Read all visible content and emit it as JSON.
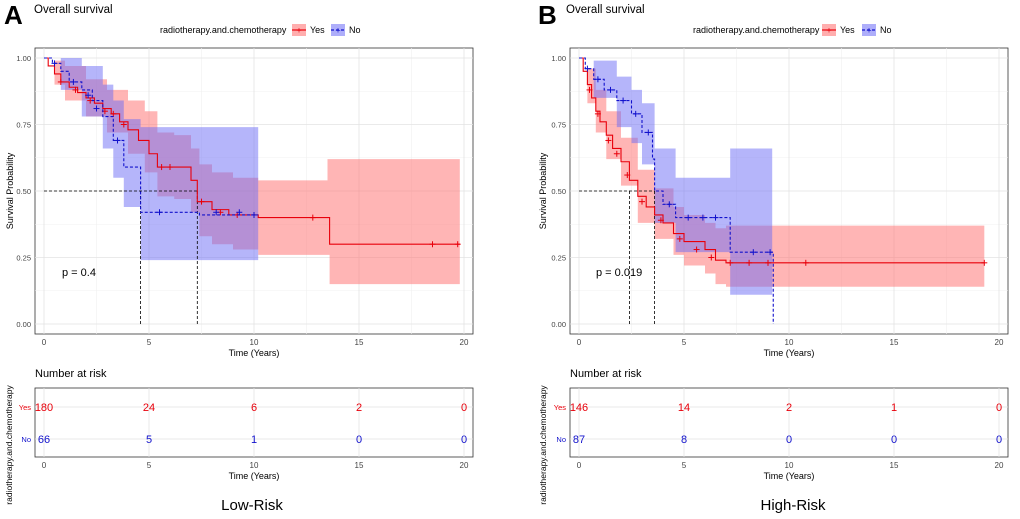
{
  "chart_data": [
    {
      "panel_label": "A",
      "type": "line",
      "subtype": "kaplan-meier",
      "title": "Overall survival",
      "legend_title": "radiotherapy.and.chemotherapy",
      "legend_entries": [
        "Yes",
        "No"
      ],
      "xlabel": "Time (Years)",
      "ylabel": "Survival Probability",
      "xlim": [
        0,
        20
      ],
      "ylim": [
        0,
        1
      ],
      "x_ticks": [
        "0",
        "5",
        "10",
        "15",
        "20"
      ],
      "y_ticks": [
        "0.00",
        "0.25",
        "0.50",
        "0.75",
        "1.00"
      ],
      "pvalue_text": "p = 0.4",
      "median_survival": {
        "Yes": 7.3,
        "No": 4.6
      },
      "series": [
        {
          "name": "Yes",
          "color": "#e8000b",
          "band_color": "#ff6b6b",
          "steps": [
            [
              0,
              1.0
            ],
            [
              0.2,
              0.97
            ],
            [
              0.5,
              0.94
            ],
            [
              0.8,
              0.91
            ],
            [
              1.2,
              0.89
            ],
            [
              1.6,
              0.87
            ],
            [
              2.0,
              0.85
            ],
            [
              2.4,
              0.83
            ],
            [
              2.8,
              0.81
            ],
            [
              3.2,
              0.79
            ],
            [
              3.6,
              0.76
            ],
            [
              4.0,
              0.73
            ],
            [
              4.5,
              0.69
            ],
            [
              5.0,
              0.64
            ],
            [
              5.4,
              0.59
            ],
            [
              6.2,
              0.59
            ],
            [
              7.0,
              0.54
            ],
            [
              7.3,
              0.46
            ],
            [
              8.0,
              0.43
            ],
            [
              8.8,
              0.41
            ],
            [
              10.2,
              0.4
            ],
            [
              13.5,
              0.4
            ],
            [
              13.6,
              0.3
            ],
            [
              19.8,
              0.3
            ]
          ],
          "upper": [
            [
              0,
              1.0
            ],
            [
              0.5,
              0.99
            ],
            [
              1.0,
              0.97
            ],
            [
              2.0,
              0.92
            ],
            [
              3.0,
              0.88
            ],
            [
              4.0,
              0.84
            ],
            [
              4.8,
              0.8
            ],
            [
              5.4,
              0.72
            ],
            [
              6.2,
              0.71
            ],
            [
              7.0,
              0.66
            ],
            [
              7.4,
              0.6
            ],
            [
              8.0,
              0.57
            ],
            [
              9.0,
              0.55
            ],
            [
              10.2,
              0.54
            ],
            [
              13.5,
              0.62
            ],
            [
              19.8,
              0.62
            ]
          ],
          "lower": [
            [
              0,
              1.0
            ],
            [
              0.5,
              0.9
            ],
            [
              1.0,
              0.84
            ],
            [
              2.0,
              0.78
            ],
            [
              3.0,
              0.72
            ],
            [
              4.0,
              0.64
            ],
            [
              4.8,
              0.57
            ],
            [
              5.4,
              0.48
            ],
            [
              6.2,
              0.47
            ],
            [
              7.0,
              0.42
            ],
            [
              7.4,
              0.33
            ],
            [
              8.0,
              0.3
            ],
            [
              9.0,
              0.28
            ],
            [
              10.2,
              0.26
            ],
            [
              13.5,
              0.26
            ],
            [
              13.6,
              0.15
            ],
            [
              19.8,
              0.15
            ]
          ],
          "censor": [
            [
              0.8,
              0.91
            ],
            [
              1.5,
              0.88
            ],
            [
              2.2,
              0.84
            ],
            [
              2.9,
              0.8
            ],
            [
              3.3,
              0.79
            ],
            [
              3.8,
              0.75
            ],
            [
              5.6,
              0.59
            ],
            [
              6.0,
              0.59
            ],
            [
              7.5,
              0.46
            ],
            [
              8.4,
              0.42
            ],
            [
              9.2,
              0.41
            ],
            [
              12.8,
              0.4
            ],
            [
              18.5,
              0.3
            ],
            [
              19.7,
              0.3
            ]
          ]
        },
        {
          "name": "No",
          "color": "#1111cc",
          "band_color": "#6c6cf5",
          "steps": [
            [
              0,
              1.0
            ],
            [
              0.4,
              0.98
            ],
            [
              0.8,
              0.95
            ],
            [
              1.2,
              0.91
            ],
            [
              1.8,
              0.88
            ],
            [
              2.3,
              0.84
            ],
            [
              2.8,
              0.78
            ],
            [
              3.3,
              0.69
            ],
            [
              3.8,
              0.59
            ],
            [
              4.6,
              0.42
            ],
            [
              7.3,
              0.42
            ],
            [
              7.4,
              0.41
            ],
            [
              10.2,
              0.41
            ]
          ],
          "upper": [
            [
              0,
              1.0
            ],
            [
              0.8,
              1.0
            ],
            [
              1.8,
              0.97
            ],
            [
              2.8,
              0.9
            ],
            [
              3.3,
              0.84
            ],
            [
              3.8,
              0.77
            ],
            [
              4.6,
              0.74
            ],
            [
              10.2,
              0.74
            ]
          ],
          "lower": [
            [
              0,
              1.0
            ],
            [
              0.8,
              0.88
            ],
            [
              1.8,
              0.78
            ],
            [
              2.8,
              0.66
            ],
            [
              3.3,
              0.55
            ],
            [
              3.8,
              0.44
            ],
            [
              4.6,
              0.24
            ],
            [
              10.2,
              0.24
            ]
          ],
          "censor": [
            [
              0.5,
              0.98
            ],
            [
              1.4,
              0.91
            ],
            [
              2.1,
              0.86
            ],
            [
              2.5,
              0.81
            ],
            [
              3.5,
              0.69
            ],
            [
              5.5,
              0.42
            ],
            [
              8.2,
              0.42
            ],
            [
              9.3,
              0.42
            ],
            [
              10.0,
              0.41
            ]
          ]
        }
      ],
      "risk_table": {
        "title": "Number at risk",
        "ylabel": "radiotherapy.and.chemotherapy",
        "xlabel": "Time (Years)",
        "times": [
          "0",
          "5",
          "10",
          "15",
          "20"
        ],
        "rows": [
          {
            "group": "Yes",
            "values": [
              "180",
              "24",
              "6",
              "2",
              "0"
            ]
          },
          {
            "group": "No",
            "values": [
              "66",
              "5",
              "1",
              "0",
              "0"
            ]
          }
        ]
      },
      "caption": "Low-Risk"
    },
    {
      "panel_label": "B",
      "type": "line",
      "subtype": "kaplan-meier",
      "title": "Overall survival",
      "legend_title": "radiotherapy.and.chemotherapy",
      "legend_entries": [
        "Yes",
        "No"
      ],
      "xlabel": "Time (Years)",
      "ylabel": "Survival Probability",
      "xlim": [
        0,
        20
      ],
      "ylim": [
        0,
        1
      ],
      "x_ticks": [
        "0",
        "5",
        "10",
        "15",
        "20"
      ],
      "y_ticks": [
        "0.00",
        "0.25",
        "0.50",
        "0.75",
        "1.00"
      ],
      "pvalue_text": "p = 0.019",
      "median_survival": {
        "Yes": 2.4,
        "No": 3.6
      },
      "series": [
        {
          "name": "Yes",
          "color": "#e8000b",
          "band_color": "#ff6b6b",
          "steps": [
            [
              0,
              1.0
            ],
            [
              0.2,
              0.95
            ],
            [
              0.4,
              0.9
            ],
            [
              0.6,
              0.85
            ],
            [
              0.8,
              0.8
            ],
            [
              1.0,
              0.76
            ],
            [
              1.3,
              0.71
            ],
            [
              1.6,
              0.66
            ],
            [
              2.0,
              0.61
            ],
            [
              2.4,
              0.54
            ],
            [
              2.8,
              0.48
            ],
            [
              3.2,
              0.44
            ],
            [
              3.6,
              0.41
            ],
            [
              4.0,
              0.38
            ],
            [
              4.5,
              0.34
            ],
            [
              5.0,
              0.31
            ],
            [
              6.0,
              0.28
            ],
            [
              6.5,
              0.24
            ],
            [
              7.0,
              0.23
            ],
            [
              19.3,
              0.23
            ]
          ],
          "upper": [
            [
              0,
              1.0
            ],
            [
              0.4,
              0.96
            ],
            [
              0.8,
              0.88
            ],
            [
              1.3,
              0.8
            ],
            [
              2.0,
              0.7
            ],
            [
              2.8,
              0.58
            ],
            [
              3.6,
              0.51
            ],
            [
              4.5,
              0.44
            ],
            [
              5.0,
              0.41
            ],
            [
              6.0,
              0.38
            ],
            [
              6.5,
              0.36
            ],
            [
              7.0,
              0.37
            ],
            [
              19.3,
              0.37
            ]
          ],
          "lower": [
            [
              0,
              1.0
            ],
            [
              0.4,
              0.83
            ],
            [
              0.8,
              0.72
            ],
            [
              1.3,
              0.62
            ],
            [
              2.0,
              0.52
            ],
            [
              2.8,
              0.38
            ],
            [
              3.6,
              0.32
            ],
            [
              4.5,
              0.26
            ],
            [
              5.0,
              0.22
            ],
            [
              6.0,
              0.19
            ],
            [
              6.5,
              0.15
            ],
            [
              7.0,
              0.14
            ],
            [
              19.3,
              0.14
            ]
          ],
          "censor": [
            [
              0.5,
              0.88
            ],
            [
              0.9,
              0.79
            ],
            [
              1.4,
              0.69
            ],
            [
              1.8,
              0.64
            ],
            [
              2.3,
              0.56
            ],
            [
              3.0,
              0.46
            ],
            [
              3.9,
              0.39
            ],
            [
              4.8,
              0.32
            ],
            [
              5.6,
              0.28
            ],
            [
              6.3,
              0.25
            ],
            [
              7.2,
              0.23
            ],
            [
              8.1,
              0.23
            ],
            [
              9.0,
              0.23
            ],
            [
              10.8,
              0.23
            ],
            [
              19.3,
              0.23
            ]
          ]
        },
        {
          "name": "No",
          "color": "#1111cc",
          "band_color": "#6c6cf5",
          "steps": [
            [
              0,
              1.0
            ],
            [
              0.3,
              0.96
            ],
            [
              0.7,
              0.92
            ],
            [
              1.2,
              0.88
            ],
            [
              1.8,
              0.84
            ],
            [
              2.5,
              0.79
            ],
            [
              3.0,
              0.72
            ],
            [
              3.5,
              0.62
            ],
            [
              3.6,
              0.5
            ],
            [
              4.0,
              0.45
            ],
            [
              4.6,
              0.4
            ],
            [
              7.1,
              0.4
            ],
            [
              7.2,
              0.27
            ],
            [
              9.2,
              0.27
            ],
            [
              9.25,
              0.0
            ]
          ],
          "upper": [
            [
              0,
              1.0
            ],
            [
              0.7,
              0.99
            ],
            [
              1.8,
              0.93
            ],
            [
              2.5,
              0.88
            ],
            [
              3.0,
              0.83
            ],
            [
              3.6,
              0.66
            ],
            [
              4.6,
              0.55
            ],
            [
              7.2,
              0.66
            ],
            [
              9.2,
              0.66
            ]
          ],
          "lower": [
            [
              0,
              1.0
            ],
            [
              0.7,
              0.85
            ],
            [
              1.8,
              0.74
            ],
            [
              2.5,
              0.68
            ],
            [
              3.0,
              0.6
            ],
            [
              3.6,
              0.38
            ],
            [
              4.6,
              0.27
            ],
            [
              7.2,
              0.11
            ],
            [
              9.2,
              0.11
            ]
          ],
          "censor": [
            [
              0.4,
              0.96
            ],
            [
              0.9,
              0.92
            ],
            [
              1.5,
              0.88
            ],
            [
              2.1,
              0.84
            ],
            [
              2.7,
              0.79
            ],
            [
              3.3,
              0.72
            ],
            [
              4.3,
              0.45
            ],
            [
              5.2,
              0.4
            ],
            [
              5.9,
              0.4
            ],
            [
              6.5,
              0.4
            ],
            [
              8.3,
              0.27
            ],
            [
              9.1,
              0.27
            ]
          ]
        }
      ],
      "risk_table": {
        "title": "Number at risk",
        "ylabel": "radiotherapy.and.chemotherapy",
        "xlabel": "Time (Years)",
        "times": [
          "0",
          "5",
          "10",
          "15",
          "20"
        ],
        "rows": [
          {
            "group": "Yes",
            "values": [
              "146",
              "14",
              "2",
              "1",
              "0"
            ]
          },
          {
            "group": "No",
            "values": [
              "87",
              "8",
              "0",
              "0",
              "0"
            ]
          }
        ]
      },
      "caption": "High-Risk"
    }
  ]
}
